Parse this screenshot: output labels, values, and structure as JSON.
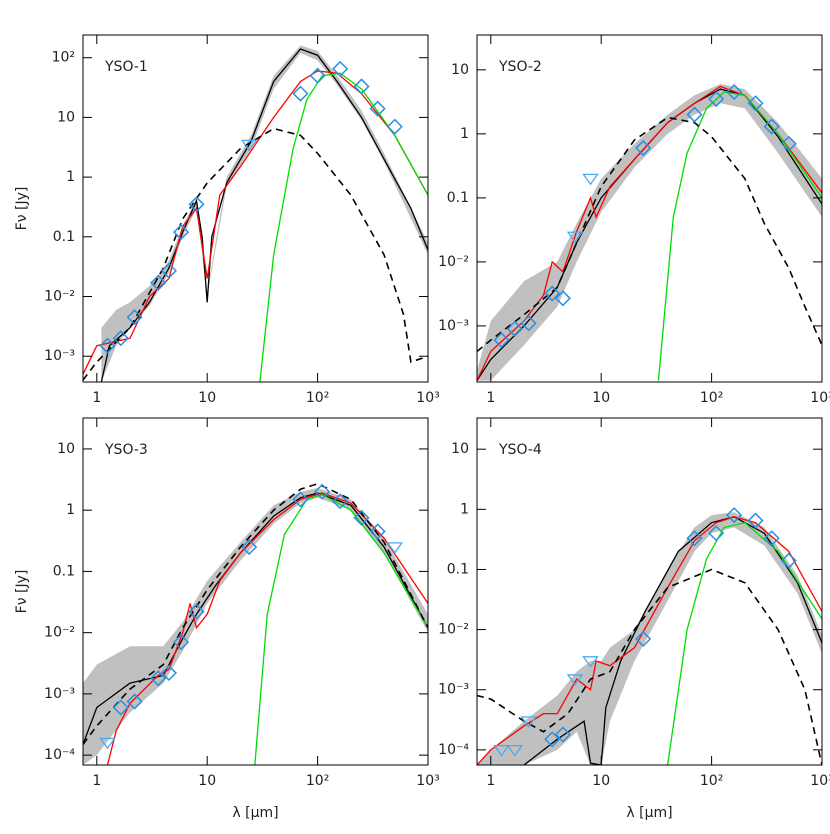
{
  "chart_data": [
    {
      "type": "line",
      "title": "YSO-1",
      "ylabel": "Fν [Jy]",
      "log_x": true,
      "log_y": true,
      "xlim": [
        0.75,
        1000
      ],
      "ylim": [
        0.00037,
        240
      ],
      "xticks": [
        1,
        10,
        {
          "value": 100,
          "label": "10²"
        },
        {
          "value": 1000,
          "label": "10³"
        }
      ],
      "yticks": [
        {
          "value": 0.001,
          "label": "10⁻³"
        },
        {
          "value": 0.01,
          "label": "10⁻²"
        },
        0.1,
        1,
        10,
        {
          "value": 100,
          "label": "10²"
        }
      ],
      "series": [
        {
          "style": "band",
          "color": "#c0c0c0",
          "x": [
            1.1,
            1.5,
            2,
            3,
            4.5,
            6,
            8,
            10,
            15,
            25,
            40,
            70,
            100,
            150,
            250,
            400,
            1000
          ],
          "lower": [
            0.00037,
            0.0015,
            0.003,
            0.007,
            0.025,
            0.1,
            0.3,
            0.01,
            0.7,
            3,
            30,
            120,
            90,
            35,
            9,
            1.8,
            0.05
          ],
          "upper": [
            0.003,
            0.006,
            0.008,
            0.015,
            0.04,
            0.15,
            0.45,
            0.012,
            1,
            5,
            50,
            160,
            130,
            50,
            13,
            2.5,
            0.08
          ]
        },
        {
          "style": "solid",
          "color": "#000000",
          "x": [
            1.1,
            1.3,
            2,
            3,
            4.5,
            6,
            8,
            9,
            10,
            11,
            15,
            25,
            40,
            70,
            100,
            150,
            250,
            400,
            700,
            1000
          ],
          "values": [
            0.00037,
            0.0015,
            0.003,
            0.008,
            0.03,
            0.12,
            0.4,
            0.1,
            0.008,
            0.1,
            0.8,
            4,
            40,
            140,
            110,
            40,
            10,
            2,
            0.3,
            0.06
          ]
        },
        {
          "style": "solid",
          "color": "#ff0000",
          "x": [
            0.75,
            1,
            2,
            3,
            4.5,
            6,
            8,
            10,
            13,
            20,
            40,
            70,
            100,
            150,
            250,
            500,
            1000
          ],
          "values": [
            0.0005,
            0.0015,
            0.002,
            0.01,
            0.02,
            0.15,
            0.3,
            0.02,
            0.5,
            1.5,
            10,
            40,
            60,
            55,
            25,
            5,
            0.5
          ]
        },
        {
          "style": "solid",
          "color": "#00dd00",
          "x": [
            30,
            40,
            60,
            80,
            110,
            160,
            250,
            500,
            1000
          ],
          "values": [
            0.00037,
            0.05,
            3,
            20,
            50,
            55,
            30,
            5,
            0.5
          ]
        },
        {
          "style": "dashed",
          "color": "#000000",
          "x": [
            0.75,
            1,
            2,
            4,
            6,
            10,
            20,
            40,
            70,
            100,
            200,
            400,
            600,
            700,
            1000
          ],
          "values": [
            0.0004,
            0.0008,
            0.003,
            0.03,
            0.2,
            0.8,
            3,
            6.5,
            5,
            2.5,
            0.5,
            0.05,
            0.005,
            0.0008,
            0.001
          ]
        },
        {
          "style": "diamond",
          "color": "#2a8fe0",
          "x": [
            1.25,
            1.65,
            2.2,
            3.6,
            4.5,
            5.8,
            8,
            70,
            100,
            160,
            250,
            350,
            500
          ],
          "values": [
            0.0015,
            0.002,
            0.0045,
            0.017,
            0.027,
            0.12,
            0.35,
            25,
            50,
            65,
            33,
            14,
            7
          ]
        },
        {
          "style": "triangle",
          "color": "#4aaaf0",
          "x": [
            24
          ],
          "values": [
            3.5
          ]
        }
      ]
    },
    {
      "type": "line",
      "title": "YSO-2",
      "log_x": true,
      "log_y": true,
      "xlim": [
        0.75,
        1000
      ],
      "ylim": [
        0.000133,
        35
      ],
      "xticks": [
        1,
        10,
        {
          "value": 100,
          "label": "10²"
        },
        {
          "value": 1000,
          "label": "10³"
        }
      ],
      "yticks": [
        {
          "value": 0.001,
          "label": "10⁻³"
        },
        {
          "value": 0.01,
          "label": "10⁻²"
        },
        0.1,
        1,
        10
      ],
      "series": [
        {
          "style": "band",
          "color": "#c0c0c0",
          "x": [
            0.75,
            1,
            2,
            4,
            6,
            10,
            20,
            40,
            70,
            120,
            200,
            400,
            1000
          ],
          "lower": [
            0.00014,
            0.00014,
            0.0005,
            0.002,
            0.01,
            0.06,
            0.3,
            1,
            2,
            3,
            2.5,
            0.5,
            0.05
          ],
          "upper": [
            0.0002,
            0.0012,
            0.005,
            0.01,
            0.04,
            0.2,
            0.7,
            2,
            4,
            6,
            5,
            1.5,
            0.2
          ]
        },
        {
          "style": "solid",
          "color": "#000000",
          "x": [
            0.75,
            1,
            2,
            4,
            6,
            10,
            20,
            40,
            70,
            120,
            200,
            400,
            1000
          ],
          "values": [
            0.00014,
            0.0003,
            0.001,
            0.004,
            0.02,
            0.1,
            0.4,
            1.5,
            3,
            5,
            4,
            0.9,
            0.08
          ]
        },
        {
          "style": "solid",
          "color": "#ff0000",
          "x": [
            0.75,
            1,
            2,
            3,
            3.6,
            4.5,
            6,
            8,
            9,
            12,
            20,
            40,
            70,
            120,
            200,
            400,
            1000
          ],
          "values": [
            0.00014,
            0.0004,
            0.0012,
            0.003,
            0.01,
            0.007,
            0.03,
            0.1,
            0.05,
            0.15,
            0.4,
            1.5,
            3,
            5.5,
            4,
            1,
            0.12
          ]
        },
        {
          "style": "solid",
          "color": "#00dd00",
          "x": [
            33,
            45,
            60,
            90,
            130,
            200,
            400,
            1000
          ],
          "values": [
            0.00014,
            0.05,
            0.5,
            2.5,
            4.5,
            4,
            1,
            0.1
          ]
        },
        {
          "style": "dashed",
          "color": "#000000",
          "x": [
            0.75,
            1,
            2,
            4,
            6,
            10,
            20,
            40,
            70,
            100,
            200,
            300,
            500,
            700,
            1000
          ],
          "values": [
            0.0004,
            0.0006,
            0.0015,
            0.004,
            0.02,
            0.15,
            0.8,
            1.8,
            1.5,
            0.9,
            0.2,
            0.04,
            0.008,
            0.002,
            0.0005
          ]
        },
        {
          "style": "diamond",
          "color": "#2a8fe0",
          "x": [
            1.25,
            1.65,
            2.2,
            3.6,
            4.5,
            24,
            70,
            110,
            160,
            250,
            350,
            500
          ],
          "values": [
            0.0006,
            0.0009,
            0.0011,
            0.0032,
            0.0027,
            0.6,
            2,
            3.5,
            4.5,
            3,
            1.3,
            0.7
          ]
        },
        {
          "style": "triangle",
          "color": "#4aaaf0",
          "x": [
            5.8,
            8
          ],
          "values": [
            0.025,
            0.2
          ]
        }
      ]
    },
    {
      "type": "line",
      "title": "YSO-3",
      "ylabel": "Fν [Jy]",
      "xlabel": "λ [μm]",
      "log_x": true,
      "log_y": true,
      "xlim": [
        0.75,
        1000
      ],
      "ylim": [
        6.9e-05,
        32
      ],
      "xticks": [
        1,
        10,
        {
          "value": 100,
          "label": "10²"
        },
        {
          "value": 1000,
          "label": "10³"
        }
      ],
      "yticks": [
        {
          "value": 0.0001,
          "label": "10⁻⁴"
        },
        {
          "value": 0.001,
          "label": "10⁻³"
        },
        {
          "value": 0.01,
          "label": "10⁻²"
        },
        0.1,
        1,
        10
      ],
      "series": [
        {
          "style": "band",
          "color": "#c0c0c0",
          "x": [
            0.75,
            1,
            2,
            4,
            6,
            10,
            20,
            40,
            70,
            100,
            200,
            400,
            1000
          ],
          "lower": [
            6.9e-05,
            0.0001,
            0.0005,
            0.0015,
            0.005,
            0.03,
            0.15,
            0.6,
            1.3,
            1.6,
            1,
            0.2,
            0.01
          ],
          "upper": [
            0.0015,
            0.003,
            0.006,
            0.006,
            0.015,
            0.07,
            0.3,
            1.2,
            2,
            2.3,
            1.5,
            0.35,
            0.02
          ]
        },
        {
          "style": "solid",
          "color": "#000000",
          "x": [
            0.75,
            1,
            2,
            4,
            6,
            8,
            12,
            20,
            40,
            70,
            100,
            200,
            400,
            1000
          ],
          "values": [
            0.00015,
            0.0006,
            0.0015,
            0.002,
            0.008,
            0.02,
            0.06,
            0.2,
            0.8,
            1.6,
            1.9,
            1.2,
            0.25,
            0.012
          ]
        },
        {
          "style": "solid",
          "color": "#ff0000",
          "x": [
            1.25,
            1.5,
            2,
            3.6,
            4.5,
            6,
            7,
            8,
            10,
            13,
            20,
            40,
            70,
            110,
            200,
            400,
            1000
          ],
          "values": [
            6.9e-05,
            0.00025,
            0.0007,
            0.002,
            0.0025,
            0.01,
            0.03,
            0.012,
            0.02,
            0.07,
            0.2,
            0.7,
            1.5,
            1.9,
            1.3,
            0.35,
            0.03
          ]
        },
        {
          "style": "solid",
          "color": "#00dd00",
          "x": [
            27,
            35,
            50,
            80,
            110,
            200,
            400,
            1000
          ],
          "values": [
            6.9e-05,
            0.02,
            0.4,
            1.5,
            1.8,
            1,
            0.2,
            0.012
          ]
        },
        {
          "style": "dashed",
          "color": "#000000",
          "x": [
            0.75,
            1,
            2,
            4,
            6,
            10,
            20,
            40,
            70,
            100,
            200,
            400,
            1000
          ],
          "values": [
            0.00015,
            0.0003,
            0.0012,
            0.003,
            0.012,
            0.05,
            0.25,
            1,
            2.2,
            2.7,
            1.5,
            0.3,
            0.012
          ]
        },
        {
          "style": "diamond",
          "color": "#2a8fe0",
          "x": [
            1.65,
            2.2,
            3.6,
            4.5,
            5.8,
            8,
            24,
            70,
            110,
            160,
            250,
            350
          ],
          "values": [
            0.0006,
            0.00075,
            0.0018,
            0.0022,
            0.007,
            0.022,
            0.25,
            1.5,
            2,
            1.4,
            0.75,
            0.45
          ]
        },
        {
          "style": "triangle",
          "color": "#4aaaf0",
          "x": [
            1.25,
            500
          ],
          "values": [
            0.00016,
            0.25
          ]
        }
      ]
    },
    {
      "type": "line",
      "title": "YSO-4",
      "xlabel": "λ [μm]",
      "log_x": true,
      "log_y": true,
      "xlim": [
        0.75,
        1000
      ],
      "ylim": [
        5.6e-05,
        33
      ],
      "xticks": [
        1,
        10,
        {
          "value": 100,
          "label": "10²"
        },
        {
          "value": 1000,
          "label": "10³"
        }
      ],
      "yticks": [
        {
          "value": 0.0001,
          "label": "10⁻⁴"
        },
        {
          "value": 0.001,
          "label": "10⁻³"
        },
        {
          "value": 0.01,
          "label": "10⁻²"
        },
        0.1,
        1,
        10
      ],
      "series": [
        {
          "style": "band",
          "color": "#c0c0c0",
          "x": [
            0.75,
            1,
            2,
            4,
            6,
            8,
            10,
            12,
            20,
            40,
            70,
            100,
            160,
            300,
            600,
            1000
          ],
          "lower": [
            5.6e-05,
            5.6e-05,
            5.6e-05,
            0.0001,
            0.0002,
            5.6e-05,
            5.6e-05,
            0.0003,
            0.003,
            0.03,
            0.2,
            0.4,
            0.5,
            0.25,
            0.04,
            0.004
          ],
          "upper": [
            5.6e-05,
            0.0001,
            0.0003,
            0.0008,
            0.002,
            0.003,
            0.003,
            0.005,
            0.01,
            0.1,
            0.5,
            0.8,
            0.9,
            0.5,
            0.08,
            0.008
          ]
        },
        {
          "style": "solid",
          "color": "#000000",
          "x": [
            2,
            4,
            7,
            8,
            10,
            11,
            15,
            25,
            50,
            100,
            160,
            300,
            600,
            1000
          ],
          "values": [
            5.6e-05,
            0.00015,
            0.0003,
            6e-05,
            5.6e-05,
            0.0005,
            0.003,
            0.02,
            0.2,
            0.6,
            0.75,
            0.4,
            0.06,
            0.006
          ]
        },
        {
          "style": "solid",
          "color": "#ff0000",
          "x": [
            0.75,
            1,
            2,
            3,
            4,
            6,
            8,
            9,
            12,
            20,
            40,
            70,
            110,
            160,
            250,
            500,
            1000
          ],
          "values": [
            5.6e-05,
            0.0001,
            0.00025,
            0.0004,
            0.0004,
            0.0015,
            0.001,
            0.003,
            0.0025,
            0.005,
            0.05,
            0.3,
            0.6,
            0.75,
            0.6,
            0.2,
            0.02
          ]
        },
        {
          "style": "solid",
          "color": "#00dd00",
          "x": [
            40,
            60,
            90,
            130,
            200,
            400,
            1000
          ],
          "values": [
            5.6e-05,
            0.01,
            0.15,
            0.5,
            0.6,
            0.2,
            0.015
          ]
        },
        {
          "style": "dashed",
          "color": "#000000",
          "x": [
            0.75,
            1,
            2,
            3,
            5,
            8,
            12,
            20,
            40,
            100,
            200,
            400,
            700,
            1000
          ],
          "values": [
            0.0008,
            0.0007,
            0.0003,
            0.0002,
            0.0004,
            0.0015,
            0.002,
            0.01,
            0.05,
            0.1,
            0.06,
            0.01,
            0.001,
            5.6e-05
          ]
        },
        {
          "style": "diamond",
          "color": "#2a8fe0",
          "x": [
            3.6,
            4.5,
            24,
            70,
            110,
            160,
            250,
            350,
            500
          ],
          "values": [
            0.00015,
            0.00018,
            0.007,
            0.33,
            0.4,
            0.8,
            0.65,
            0.33,
            0.14
          ]
        },
        {
          "style": "triangle",
          "color": "#4aaaf0",
          "x": [
            1.25,
            1.65,
            2.2,
            5.8,
            8
          ],
          "values": [
            0.0001,
            0.0001,
            0.0003,
            0.0015,
            0.003
          ]
        }
      ]
    }
  ]
}
